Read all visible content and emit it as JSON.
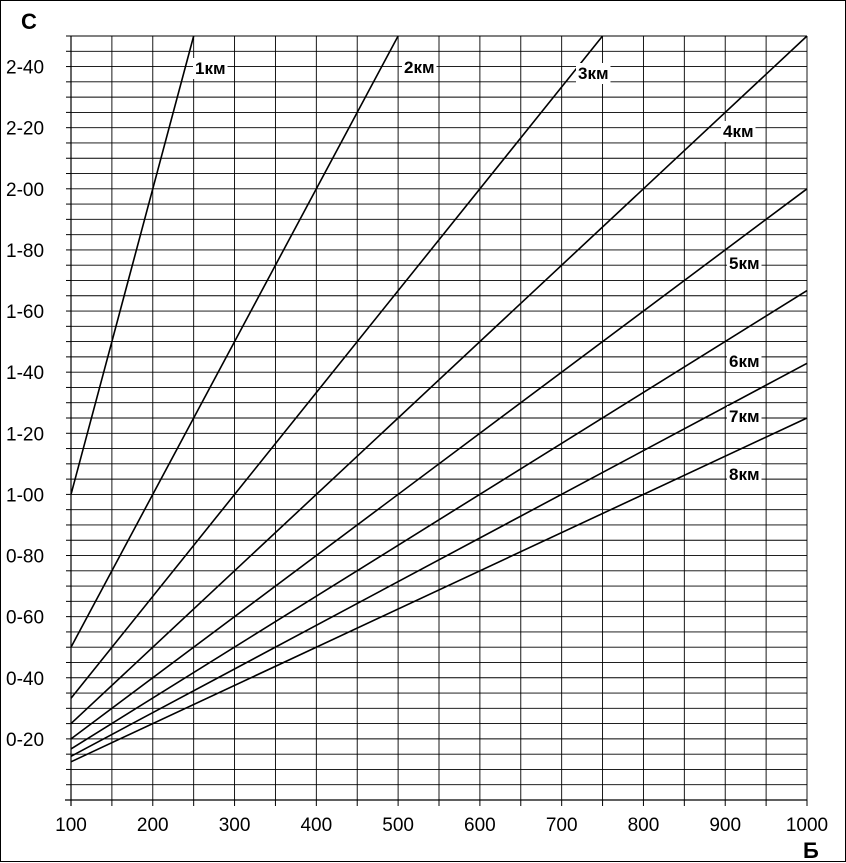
{
  "chart_data": {
    "type": "line",
    "title": "",
    "xlabel": "Б",
    "ylabel": "С",
    "xlim": [
      100,
      1000
    ],
    "ylim": [
      0,
      2.5
    ],
    "grid": true,
    "x_ticks": [
      100,
      200,
      300,
      400,
      500,
      600,
      700,
      800,
      900,
      1000
    ],
    "x_tick_labels": [
      "100",
      "200",
      "300",
      "400",
      "500",
      "600",
      "700",
      "800",
      "900",
      "1000"
    ],
    "x_minor_ticks": [
      150,
      250,
      350,
      450,
      550,
      650,
      750,
      850,
      950
    ],
    "y_ticks": [
      0.2,
      0.4,
      0.6,
      0.8,
      1.0,
      1.2,
      1.4,
      1.6,
      1.8,
      2.0,
      2.2,
      2.4
    ],
    "y_tick_labels": [
      "0-20",
      "0-40",
      "0-60",
      "0-80",
      "1-00",
      "1-20",
      "1-40",
      "1-60",
      "1-80",
      "2-00",
      "2-20",
      "2-40"
    ],
    "y_minor_step": 0.05,
    "series": [
      {
        "name": "1км",
        "x": [
          100,
          250
        ],
        "y": [
          1.0,
          2.5
        ]
      },
      {
        "name": "2км",
        "x": [
          100,
          500
        ],
        "y": [
          0.5,
          2.5
        ]
      },
      {
        "name": "3км",
        "x": [
          100,
          750
        ],
        "y": [
          0.333,
          2.5
        ]
      },
      {
        "name": "4км",
        "x": [
          100,
          1000
        ],
        "y": [
          0.25,
          2.5
        ]
      },
      {
        "name": "5км",
        "x": [
          100,
          1000
        ],
        "y": [
          0.2,
          2.0
        ]
      },
      {
        "name": "6км",
        "x": [
          100,
          1000
        ],
        "y": [
          0.167,
          1.667
        ]
      },
      {
        "name": "7км",
        "x": [
          100,
          1000
        ],
        "y": [
          0.143,
          1.429
        ]
      },
      {
        "name": "8км",
        "x": [
          100,
          1000
        ],
        "y": [
          0.125,
          1.25
        ]
      }
    ]
  }
}
